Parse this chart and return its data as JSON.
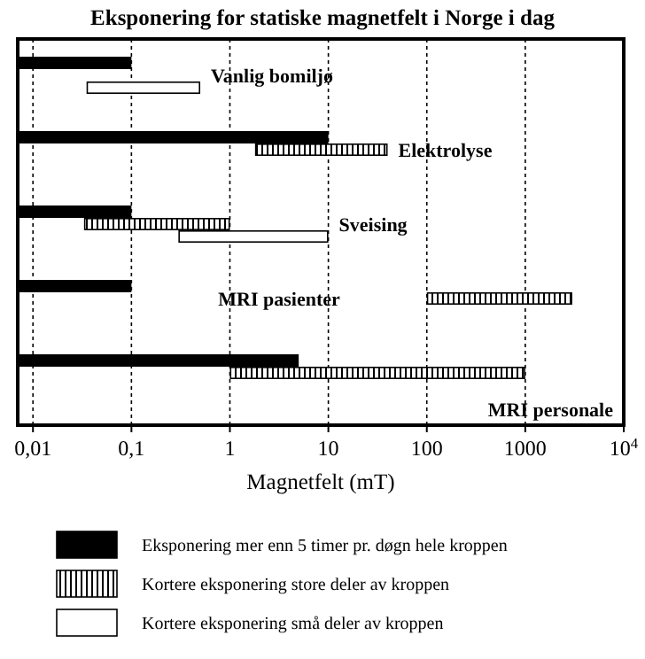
{
  "chart_data": {
    "type": "bar",
    "orientation": "horizontal",
    "title": "Eksponering for statiske magnetfelt i Norge i dag",
    "xlabel": "Magnetfelt (mT)",
    "categories": [
      "Vanlig bomiljø",
      "Elektrolyse",
      "Sveising",
      "MRI pasienter",
      "MRI personale"
    ],
    "series": [
      {
        "name": "Eksponering mer enn 5 timer pr. døgn hele kroppen",
        "color": "#000000",
        "base": [
          0.007,
          0.007,
          0.007,
          0.007,
          0.007
        ],
        "values": [
          0.093,
          9.993,
          0.093,
          0.093,
          4.993
        ]
      },
      {
        "name": "Kortere eksponering store deler av kroppen",
        "color": "#000000",
        "base": [
          null,
          1.8,
          0.033,
          100,
          1
        ],
        "values": [
          null,
          38.2,
          0.967,
          2900,
          999
        ]
      },
      {
        "name": "Kortere eksponering små deler av kroppen",
        "color": "#ffffff",
        "base": [
          0.035,
          null,
          0.3,
          null,
          null
        ],
        "values": [
          0.465,
          null,
          9.7,
          null,
          null
        ]
      }
    ],
    "log": "x",
    "xlim": [
      0.007,
      10000
    ],
    "xticks": [
      {
        "value": 0.01,
        "label": "0,01"
      },
      {
        "value": 0.1,
        "label": "0,1"
      },
      1,
      10,
      100,
      1000,
      {
        "value": 10000,
        "label": "10$^{4}$"
      }
    ],
    "grid": "x",
    "legend": "bottom"
  }
}
